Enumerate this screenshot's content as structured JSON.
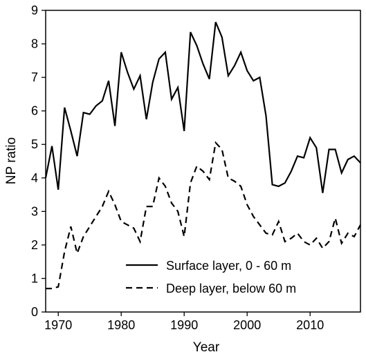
{
  "chart_data": {
    "type": "line",
    "xlabel": "Year",
    "ylabel": "NP ratio",
    "xlim": [
      1968,
      2018
    ],
    "ylim": [
      0,
      9
    ],
    "x_ticks": [
      1970,
      1980,
      1990,
      2000,
      2010
    ],
    "y_ticks": [
      0,
      1,
      2,
      3,
      4,
      5,
      6,
      7,
      8,
      9
    ],
    "grid": false,
    "legend_position": "bottom-right",
    "series": [
      {
        "name": "Surface layer, 0 - 60 m",
        "line_style": "solid",
        "color": "#000000",
        "x": [
          1968,
          1969,
          1970,
          1971,
          1972,
          1973,
          1974,
          1975,
          1976,
          1977,
          1978,
          1979,
          1980,
          1981,
          1982,
          1983,
          1984,
          1985,
          1986,
          1987,
          1988,
          1989,
          1990,
          1991,
          1992,
          1993,
          1994,
          1995,
          1996,
          1997,
          1998,
          1999,
          2000,
          2001,
          2002,
          2003,
          2004,
          2005,
          2006,
          2007,
          2008,
          2009,
          2010,
          2011,
          2012,
          2013,
          2014,
          2015,
          2016,
          2017,
          2018
        ],
        "y": [
          4.0,
          4.95,
          3.65,
          6.1,
          5.4,
          4.65,
          5.95,
          5.9,
          6.15,
          6.3,
          6.9,
          5.55,
          7.75,
          7.15,
          6.65,
          7.05,
          5.75,
          6.85,
          7.55,
          7.75,
          6.35,
          6.7,
          5.4,
          8.35,
          7.95,
          7.4,
          6.95,
          8.65,
          8.2,
          7.05,
          7.35,
          7.75,
          7.2,
          6.9,
          7.0,
          5.85,
          3.8,
          3.75,
          3.85,
          4.2,
          4.65,
          4.6,
          5.2,
          4.9,
          3.55,
          4.85,
          4.85,
          4.15,
          4.55,
          4.65,
          4.45
        ]
      },
      {
        "name": "Deep layer, below 60 m",
        "line_style": "dashed",
        "color": "#000000",
        "x": [
          1968,
          1969,
          1970,
          1971,
          1972,
          1973,
          1974,
          1975,
          1976,
          1977,
          1978,
          1979,
          1980,
          1981,
          1982,
          1983,
          1984,
          1985,
          1986,
          1987,
          1988,
          1989,
          1990,
          1991,
          1992,
          1993,
          1994,
          1995,
          1996,
          1997,
          1998,
          1999,
          2000,
          2001,
          2002,
          2003,
          2004,
          2005,
          2006,
          2007,
          2008,
          2009,
          2010,
          2011,
          2012,
          2013,
          2014,
          2015,
          2016,
          2017,
          2018
        ],
        "y": [
          0.7,
          0.7,
          0.75,
          1.8,
          2.55,
          1.75,
          2.25,
          2.55,
          2.85,
          3.15,
          3.6,
          3.2,
          2.7,
          2.6,
          2.5,
          2.1,
          3.15,
          3.15,
          4.0,
          3.75,
          3.25,
          3.0,
          2.25,
          3.85,
          4.35,
          4.2,
          3.95,
          5.05,
          4.85,
          4.0,
          3.9,
          3.75,
          3.2,
          2.85,
          2.6,
          2.35,
          2.3,
          2.7,
          2.1,
          2.2,
          2.35,
          2.1,
          2.0,
          2.2,
          1.9,
          2.1,
          2.8,
          2.05,
          2.35,
          2.25,
          2.6
        ]
      }
    ]
  }
}
